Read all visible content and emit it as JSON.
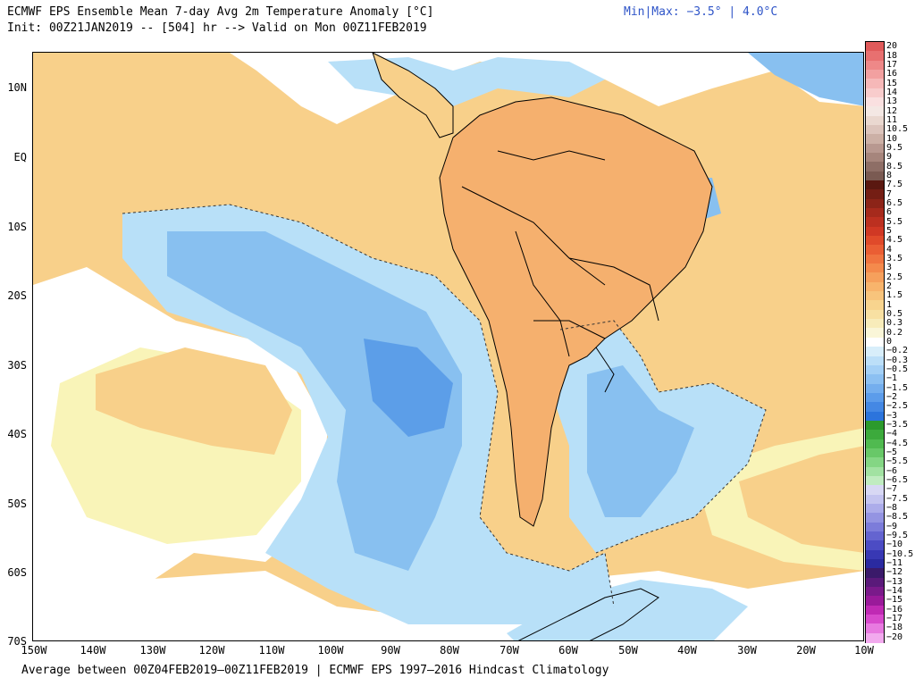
{
  "header": {
    "title": "ECMWF EPS Ensemble Mean 7-day Avg 2m Temperature Anomaly [°C]",
    "init": "Init: 00Z21JAN2019 -- [504] hr --> Valid on Mon 00Z11FEB2019",
    "minmax": "Min|Max: −3.5° | 4.0°C"
  },
  "footer": "Average between 00Z04FEB2019–00Z11FEB2019 | ECMWF EPS 1997–2016 Hindcast Climatology",
  "map": {
    "lat_labels": [
      "10N",
      "EQ",
      "10S",
      "20S",
      "30S",
      "40S",
      "50S",
      "60S",
      "70S"
    ],
    "lon_labels": [
      "150W",
      "140W",
      "130W",
      "120W",
      "110W",
      "100W",
      "90W",
      "80W",
      "70W",
      "60W",
      "50W",
      "40W",
      "30W",
      "20W",
      "10W"
    ],
    "colors": {
      "warm_weak": "#f9f4b8",
      "warm_mid": "#f8d08a",
      "warm_strong": "#f5b06e",
      "neutral": "#ffffff",
      "cool_weak": "#b8e0f8",
      "cool_mid": "#88c0f0",
      "cool_strong": "#5c9ee8",
      "land_outline": "#000000"
    }
  },
  "colorbar": {
    "labels": [
      "20",
      "18",
      "17",
      "16",
      "15",
      "14",
      "13",
      "12",
      "11",
      "10.5",
      "10",
      "9.5",
      "9",
      "8.5",
      "8",
      "7.5",
      "7",
      "6.5",
      "6",
      "5.5",
      "5",
      "4.5",
      "4",
      "3.5",
      "3",
      "2.5",
      "2",
      "1.5",
      "1",
      "0.5",
      "0.3",
      "0.2",
      "0",
      "−0.2",
      "−0.3",
      "−0.5",
      "−1",
      "−1.5",
      "−2",
      "−2.5",
      "−3",
      "−3.5",
      "−4",
      "−4.5",
      "−5",
      "−5.5",
      "−6",
      "−6.5",
      "−7",
      "−7.5",
      "−8",
      "−8.5",
      "−9",
      "−9.5",
      "−10",
      "−10.5",
      "−11",
      "−12",
      "−13",
      "−14",
      "−15",
      "−16",
      "−17",
      "−18",
      "−20"
    ],
    "colors": [
      "#e05a5a",
      "#e87070",
      "#ee8888",
      "#f2a0a0",
      "#f6b8b8",
      "#f8cccc",
      "#fae0e0",
      "#f4e8e4",
      "#ead8d0",
      "#dcc4bc",
      "#ccb0a6",
      "#b89890",
      "#a6857c",
      "#8e6e66",
      "#7a5a52",
      "#5a1810",
      "#741e14",
      "#8c2418",
      "#a62a1c",
      "#bc3020",
      "#d03824",
      "#e04a2a",
      "#ea5e34",
      "#f07440",
      "#f48a4c",
      "#f6a05c",
      "#f8b46c",
      "#f8c47c",
      "#f8d48e",
      "#f8e0a2",
      "#f8ecba",
      "#faf6d8",
      "#ffffff",
      "#d8eefa",
      "#bcdff8",
      "#a4d0f6",
      "#8cc0f2",
      "#74aeee",
      "#5c9cea",
      "#4488e4",
      "#2c74dc",
      "#2c9a2c",
      "#3caa3c",
      "#50ba50",
      "#68c868",
      "#84d684",
      "#a2e2a2",
      "#c0ecc0",
      "#d8d8f4",
      "#c4c4f0",
      "#acacea",
      "#9494e2",
      "#7c7cda",
      "#6464d0",
      "#4c4cc4",
      "#3838b4",
      "#2a2aa0",
      "#3a1a6a",
      "#5a1a7a",
      "#7a1a8a",
      "#9a1a9a",
      "#c02ab4",
      "#d84acc",
      "#e87ae0",
      "#f2aaee"
    ]
  }
}
